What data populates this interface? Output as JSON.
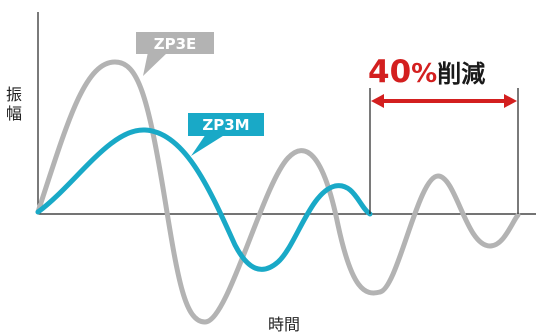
{
  "axes": {
    "y_label_chars": [
      "振",
      "幅"
    ],
    "x_label": "時間"
  },
  "curves": [
    {
      "name": "ZP3E",
      "color": "#b3b3b3"
    },
    {
      "name": "ZP3M",
      "color": "#19a9c7"
    }
  ],
  "headline": {
    "number": "40",
    "percent": "%",
    "word": "削減",
    "color": "#d31f1f"
  }
}
